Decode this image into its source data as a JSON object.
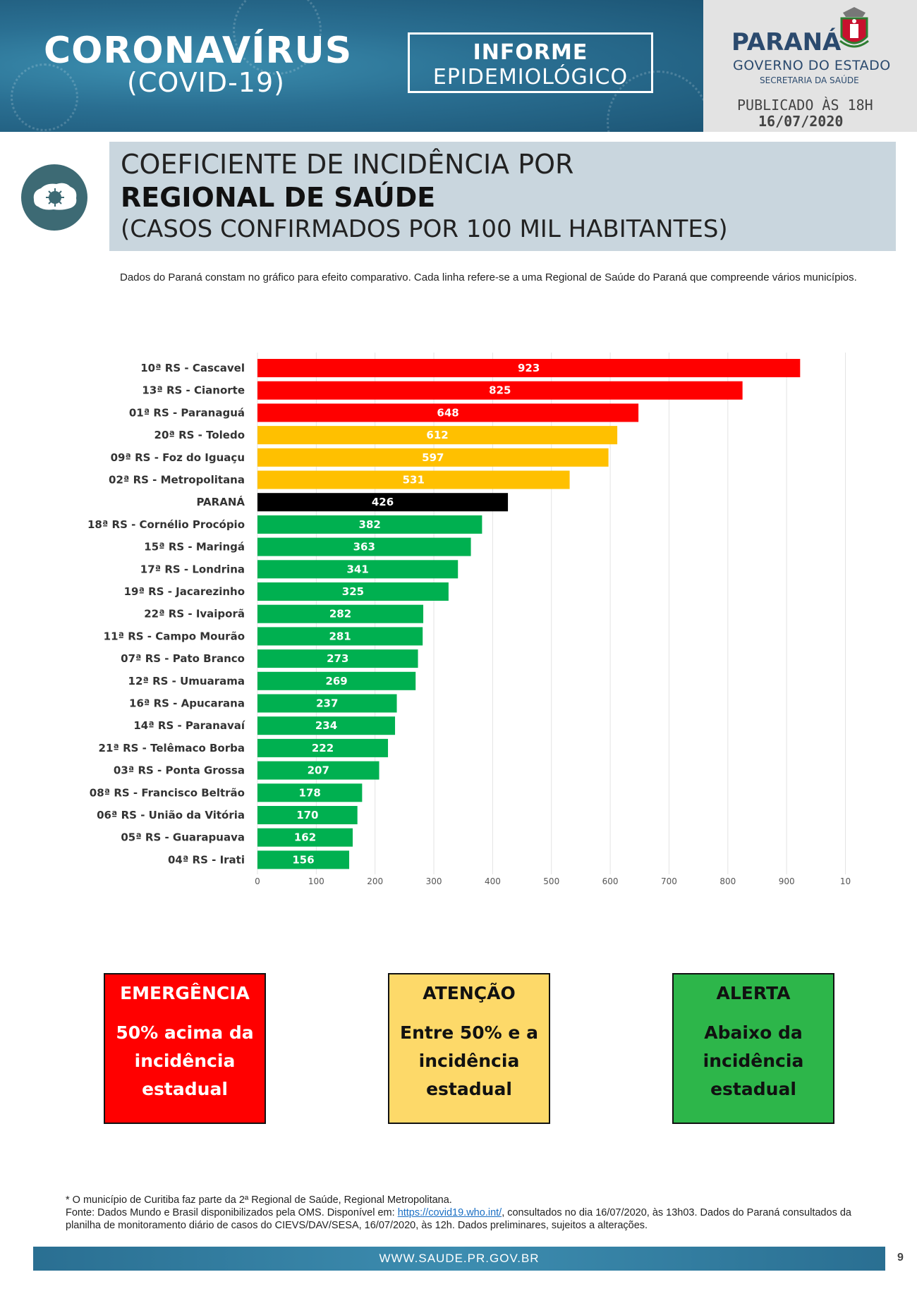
{
  "header": {
    "title": "CORONAVÍRUS",
    "subtitle": "(COVID-19)",
    "report_line1": "INFORME",
    "report_line2": "EPIDEMIOLÓGICO",
    "state": "PARANÁ",
    "government": "GOVERNO DO ESTADO",
    "secretariat": "SECRETARIA DA SAÚDE",
    "published": "PUBLICADO ÀS 18H",
    "date": "16/07/2020"
  },
  "section": {
    "line1": "COEFICIENTE DE INCIDÊNCIA POR",
    "line2": "REGIONAL DE SAÚDE",
    "line3": "(CASOS CONFIRMADOS POR 100 MIL HABITANTES)"
  },
  "note": "Dados do Paraná constam no gráfico para efeito comparativo. Cada linha refere-se a uma Regional de Saúde do Paraná que compreende vários municípios.",
  "colors": {
    "red": "#ff0000",
    "yellow": "#ffc000",
    "black": "#000000",
    "green": "#00b050"
  },
  "chart_data": {
    "type": "bar",
    "orientation": "horizontal",
    "xlim": [
      0,
      1000
    ],
    "ticks": [
      "0",
      "100",
      "200",
      "300",
      "400",
      "500",
      "600",
      "700",
      "800",
      "900",
      "10"
    ],
    "grid": true,
    "categories": [
      "10ª RS - Cascavel",
      "13ª RS - Cianorte",
      "01ª RS - Paranaguá",
      "20ª RS - Toledo",
      "09ª RS - Foz do Iguaçu",
      "02ª RS - Metropolitana",
      "PARANÁ",
      "18ª RS - Cornélio Procópio",
      "15ª RS - Maringá",
      "17ª RS - Londrina",
      "19ª RS - Jacarezinho",
      "22ª RS - Ivaiporã",
      "11ª RS - Campo Mourão",
      "07ª RS - Pato Branco",
      "12ª RS - Umuarama",
      "16ª RS - Apucarana",
      "14ª RS - Paranavaí",
      "21ª RS - Telêmaco Borba",
      "03ª RS - Ponta Grossa",
      "08ª RS - Francisco Beltrão",
      "06ª RS - União da Vitória",
      "05ª RS - Guarapuava",
      "04ª RS - Irati"
    ],
    "values": [
      923,
      825,
      648,
      612,
      597,
      531,
      426,
      382,
      363,
      341,
      325,
      282,
      281,
      273,
      269,
      237,
      234,
      222,
      207,
      178,
      170,
      162,
      156
    ],
    "bar_colors": [
      "red",
      "red",
      "red",
      "yellow",
      "yellow",
      "yellow",
      "black",
      "green",
      "green",
      "green",
      "green",
      "green",
      "green",
      "green",
      "green",
      "green",
      "green",
      "green",
      "green",
      "green",
      "green",
      "green",
      "green"
    ]
  },
  "legend": {
    "emergency": {
      "title": "EMERGÊNCIA",
      "desc": "50% acima da incidência estadual"
    },
    "attention": {
      "title": "ATENÇÃO",
      "desc": "Entre 50% e a incidência estadual"
    },
    "alert": {
      "title": "ALERTA",
      "desc": "Abaixo da incidência estadual"
    }
  },
  "footer": {
    "line1": "* O município de Curitiba faz parte da 2ª Regional de Saúde, Regional Metropolitana.",
    "source_pre": "Fonte: Dados Mundo e Brasil disponibilizados pela OMS. Disponível em: ",
    "source_link": "https://covid19.who.int/",
    "source_post": ", consultados no dia 16/07/2020, às 13h03. Dados do Paraná consultados da planilha de monitoramento diário de casos do CIEVS/DAV/SESA, 16/07/2020, às 12h. Dados preliminares, sujeitos a alterações.",
    "website": "WWW.SAUDE.PR.GOV.BR",
    "page": "9"
  }
}
